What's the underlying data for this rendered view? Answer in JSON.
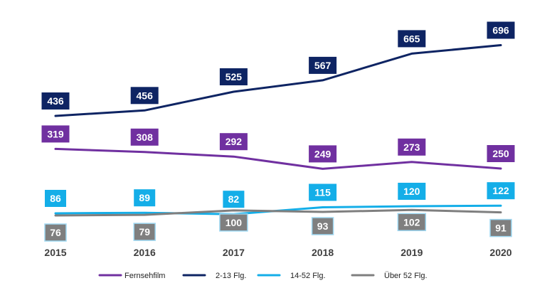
{
  "chart_data": {
    "type": "line",
    "categories": [
      "2015",
      "2016",
      "2017",
      "2018",
      "2019",
      "2020"
    ],
    "series": [
      {
        "name": "Fernsehfilm",
        "color": "#7030a0",
        "label_text_color": "#ffffff",
        "values": [
          319,
          308,
          292,
          249,
          273,
          250
        ]
      },
      {
        "name": "2-13 Flg.",
        "color": "#0e2463",
        "label_text_color": "#ffffff",
        "values": [
          436,
          456,
          525,
          567,
          665,
          696
        ]
      },
      {
        "name": "14-52 Flg.",
        "color": "#14aee8",
        "label_text_color": "#ffffff",
        "values": [
          86,
          89,
          82,
          115,
          120,
          122
        ]
      },
      {
        "name": "Über 52 Flg.",
        "color": "#7f7f7f",
        "label_text_color": "#ffffff",
        "values": [
          76,
          79,
          100,
          93,
          102,
          91
        ]
      }
    ],
    "legend": {
      "position": "bottom"
    },
    "grid": false,
    "title": "",
    "xlabel": "",
    "ylabel": ""
  }
}
